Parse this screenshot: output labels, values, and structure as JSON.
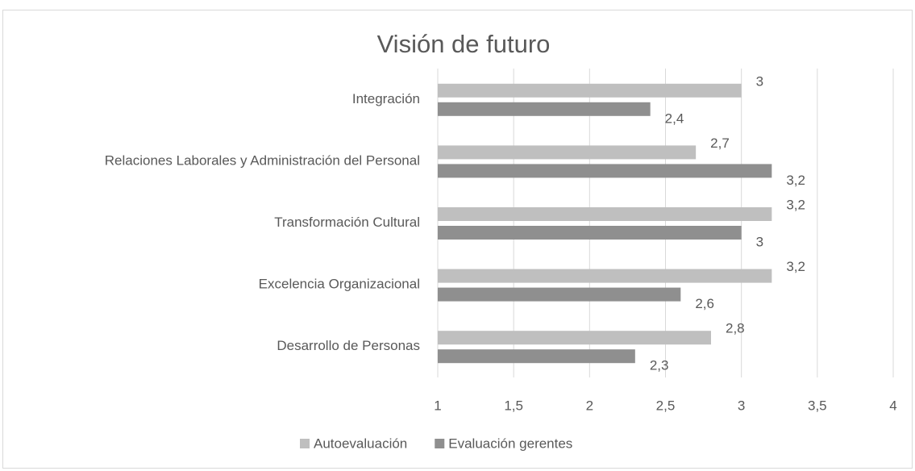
{
  "chart_data": {
    "type": "hbar",
    "title": "Visión de futuro",
    "categories": [
      "Integración",
      "Relaciones Laborales y Administración del Personal",
      "Transformación Cultural",
      "Excelencia Organizacional",
      "Desarrollo de Personas"
    ],
    "series": [
      {
        "name": "Autoevaluación",
        "color": "#bfbfbf",
        "values": [
          3,
          2.7,
          3.2,
          3.2,
          2.8
        ],
        "value_labels": [
          "3",
          "2,7",
          "3,2",
          "3,2",
          "2,8"
        ]
      },
      {
        "name": "Evaluación gerentes",
        "color": "#8f8f8f",
        "values": [
          2.4,
          3.2,
          3,
          2.6,
          2.3
        ],
        "value_labels": [
          "2,4",
          "3,2",
          "3",
          "2,6",
          "2,3"
        ]
      }
    ],
    "xlim": [
      1,
      4
    ],
    "xticks": [
      1,
      {
        "value": 1.5,
        "label": "1,5"
      },
      2,
      {
        "value": 2.5,
        "label": "2,5"
      },
      3,
      {
        "value": 3.5,
        "label": "3,5"
      },
      4
    ],
    "grid": true,
    "legend": "bottom"
  }
}
